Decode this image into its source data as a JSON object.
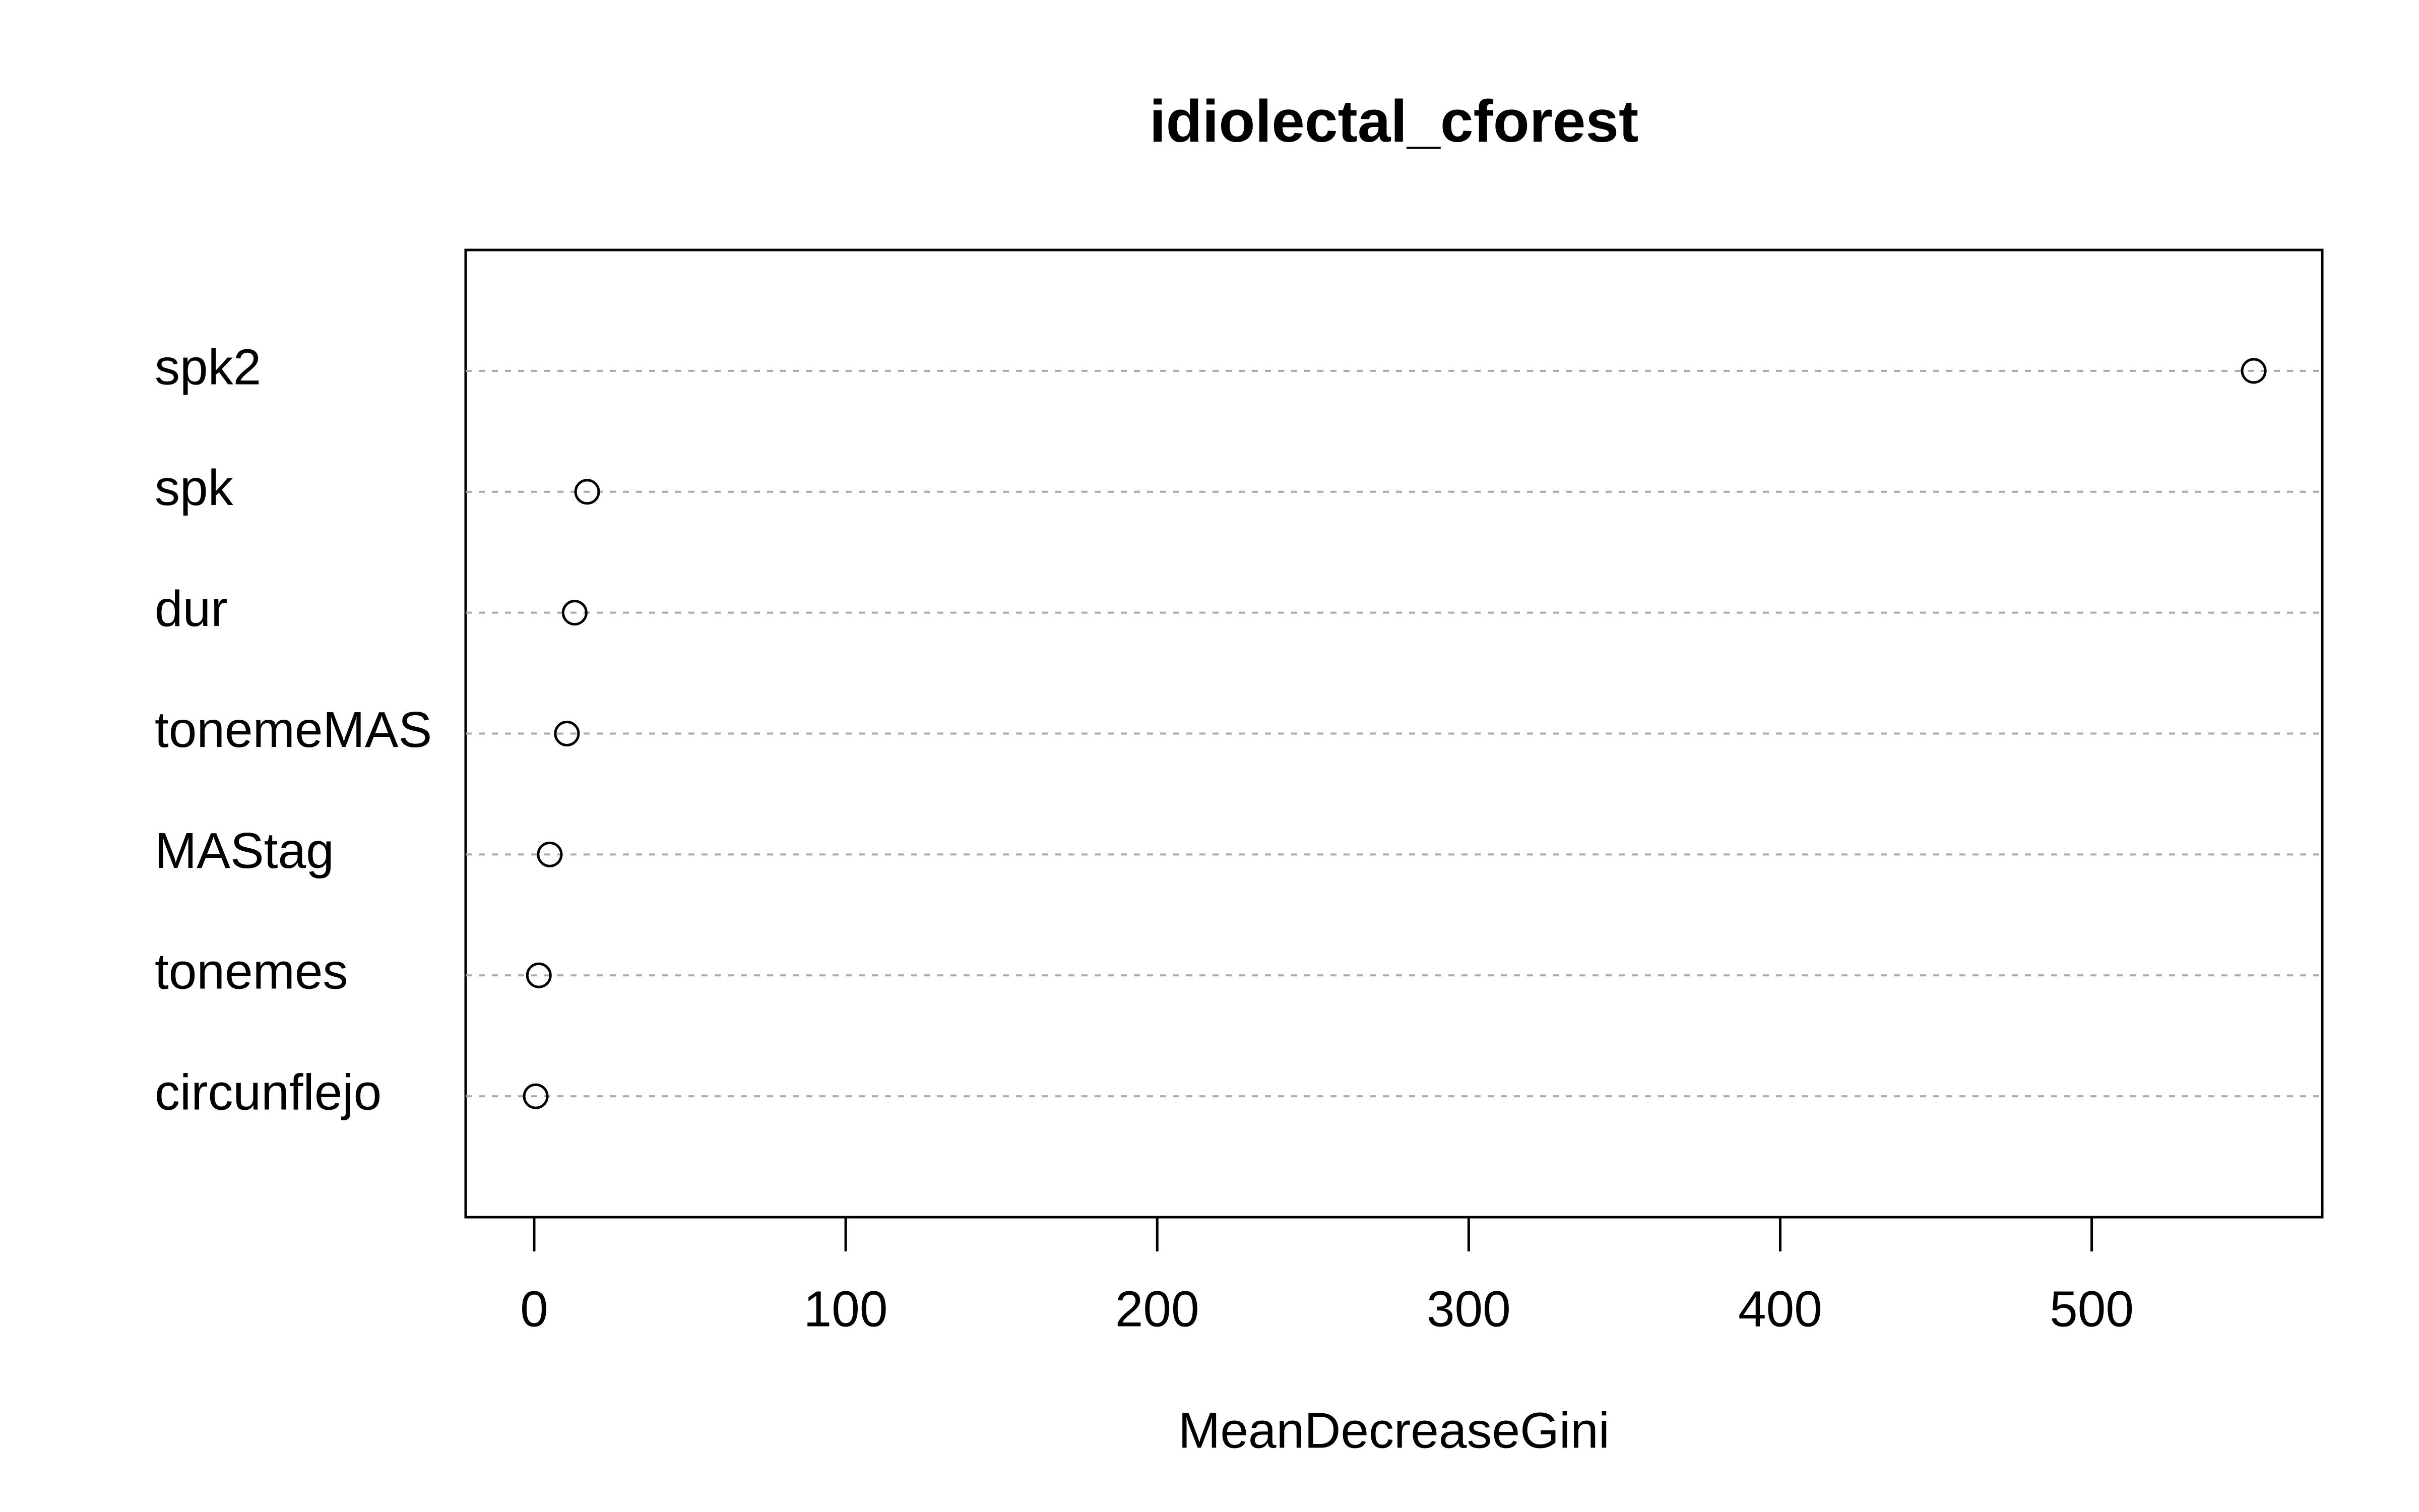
{
  "chart_data": {
    "type": "dotchart",
    "title": "idiolectal_cforest",
    "x_label": "MeanDecreaseGini",
    "categories": [
      "spk2",
      "spk",
      "dur",
      "tonemeMAS",
      "MAStag",
      "tonemes",
      "circunflejo"
    ],
    "values": [
      552,
      17,
      13,
      10.5,
      5,
      1.5,
      0.5
    ],
    "xlim": [
      -22,
      574
    ],
    "xticks": [
      0,
      100,
      200,
      300,
      400,
      500
    ],
    "color": "#000000"
  }
}
